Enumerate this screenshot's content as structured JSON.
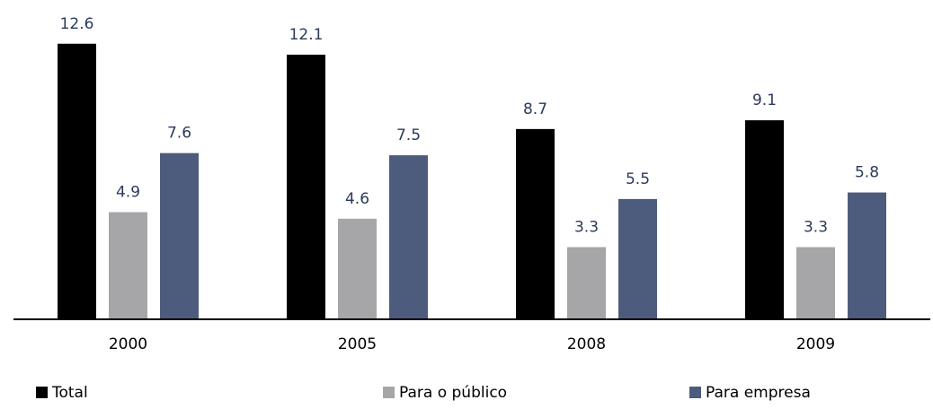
{
  "chart_data": {
    "type": "bar",
    "categories": [
      "2000",
      "2005",
      "2008",
      "2009"
    ],
    "series": [
      {
        "name": "Total",
        "color": "#000000",
        "values": [
          12.6,
          12.1,
          8.7,
          9.1
        ]
      },
      {
        "name": "Para o público",
        "color": "#a6a6a8",
        "values": [
          4.9,
          4.6,
          3.3,
          3.3
        ]
      },
      {
        "name": "Para empresa",
        "color": "#4d5b7c",
        "values": [
          7.6,
          7.5,
          5.5,
          5.8
        ]
      }
    ],
    "ylim": [
      0,
      13
    ],
    "grid": false,
    "legend": "bottom"
  }
}
